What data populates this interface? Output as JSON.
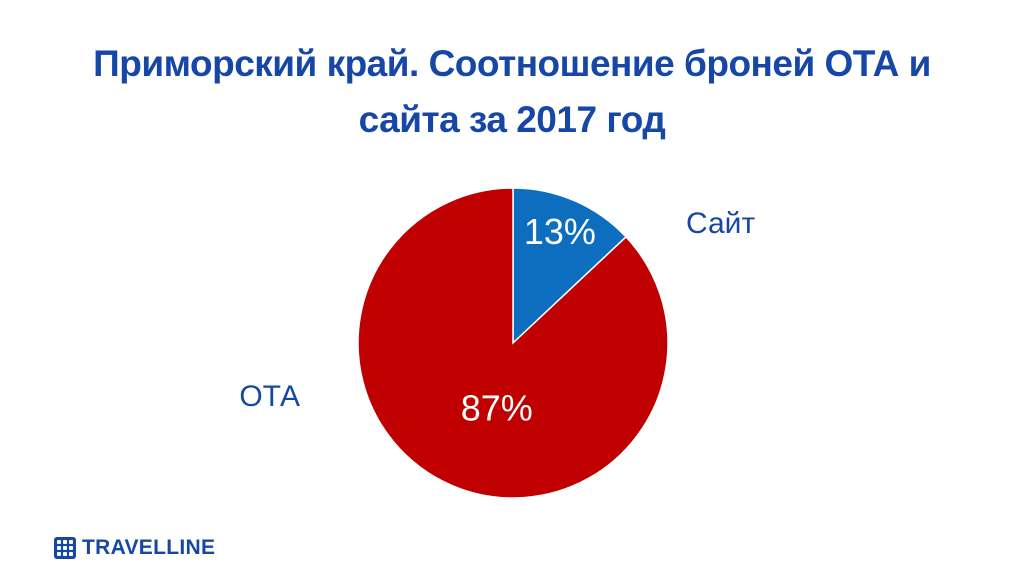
{
  "title_lines": [
    "Приморский край. Соотношение броней ОТА и",
    "сайта за 2017 год"
  ],
  "brand": {
    "name": "TRAVELLINE",
    "color": "#1747a6"
  },
  "chart_data": {
    "type": "pie",
    "title": "Приморский край. Соотношение броней ОТА и сайта за 2017 год",
    "start": "12 o'clock",
    "direction": "clockwise",
    "legend": "none",
    "slices": [
      {
        "label": "Сайт",
        "value": 13,
        "value_label": "13%",
        "color": "#0d6ebf"
      },
      {
        "label": "ОТА",
        "value": 87,
        "value_label": "87%",
        "color": "#c00000"
      }
    ]
  }
}
